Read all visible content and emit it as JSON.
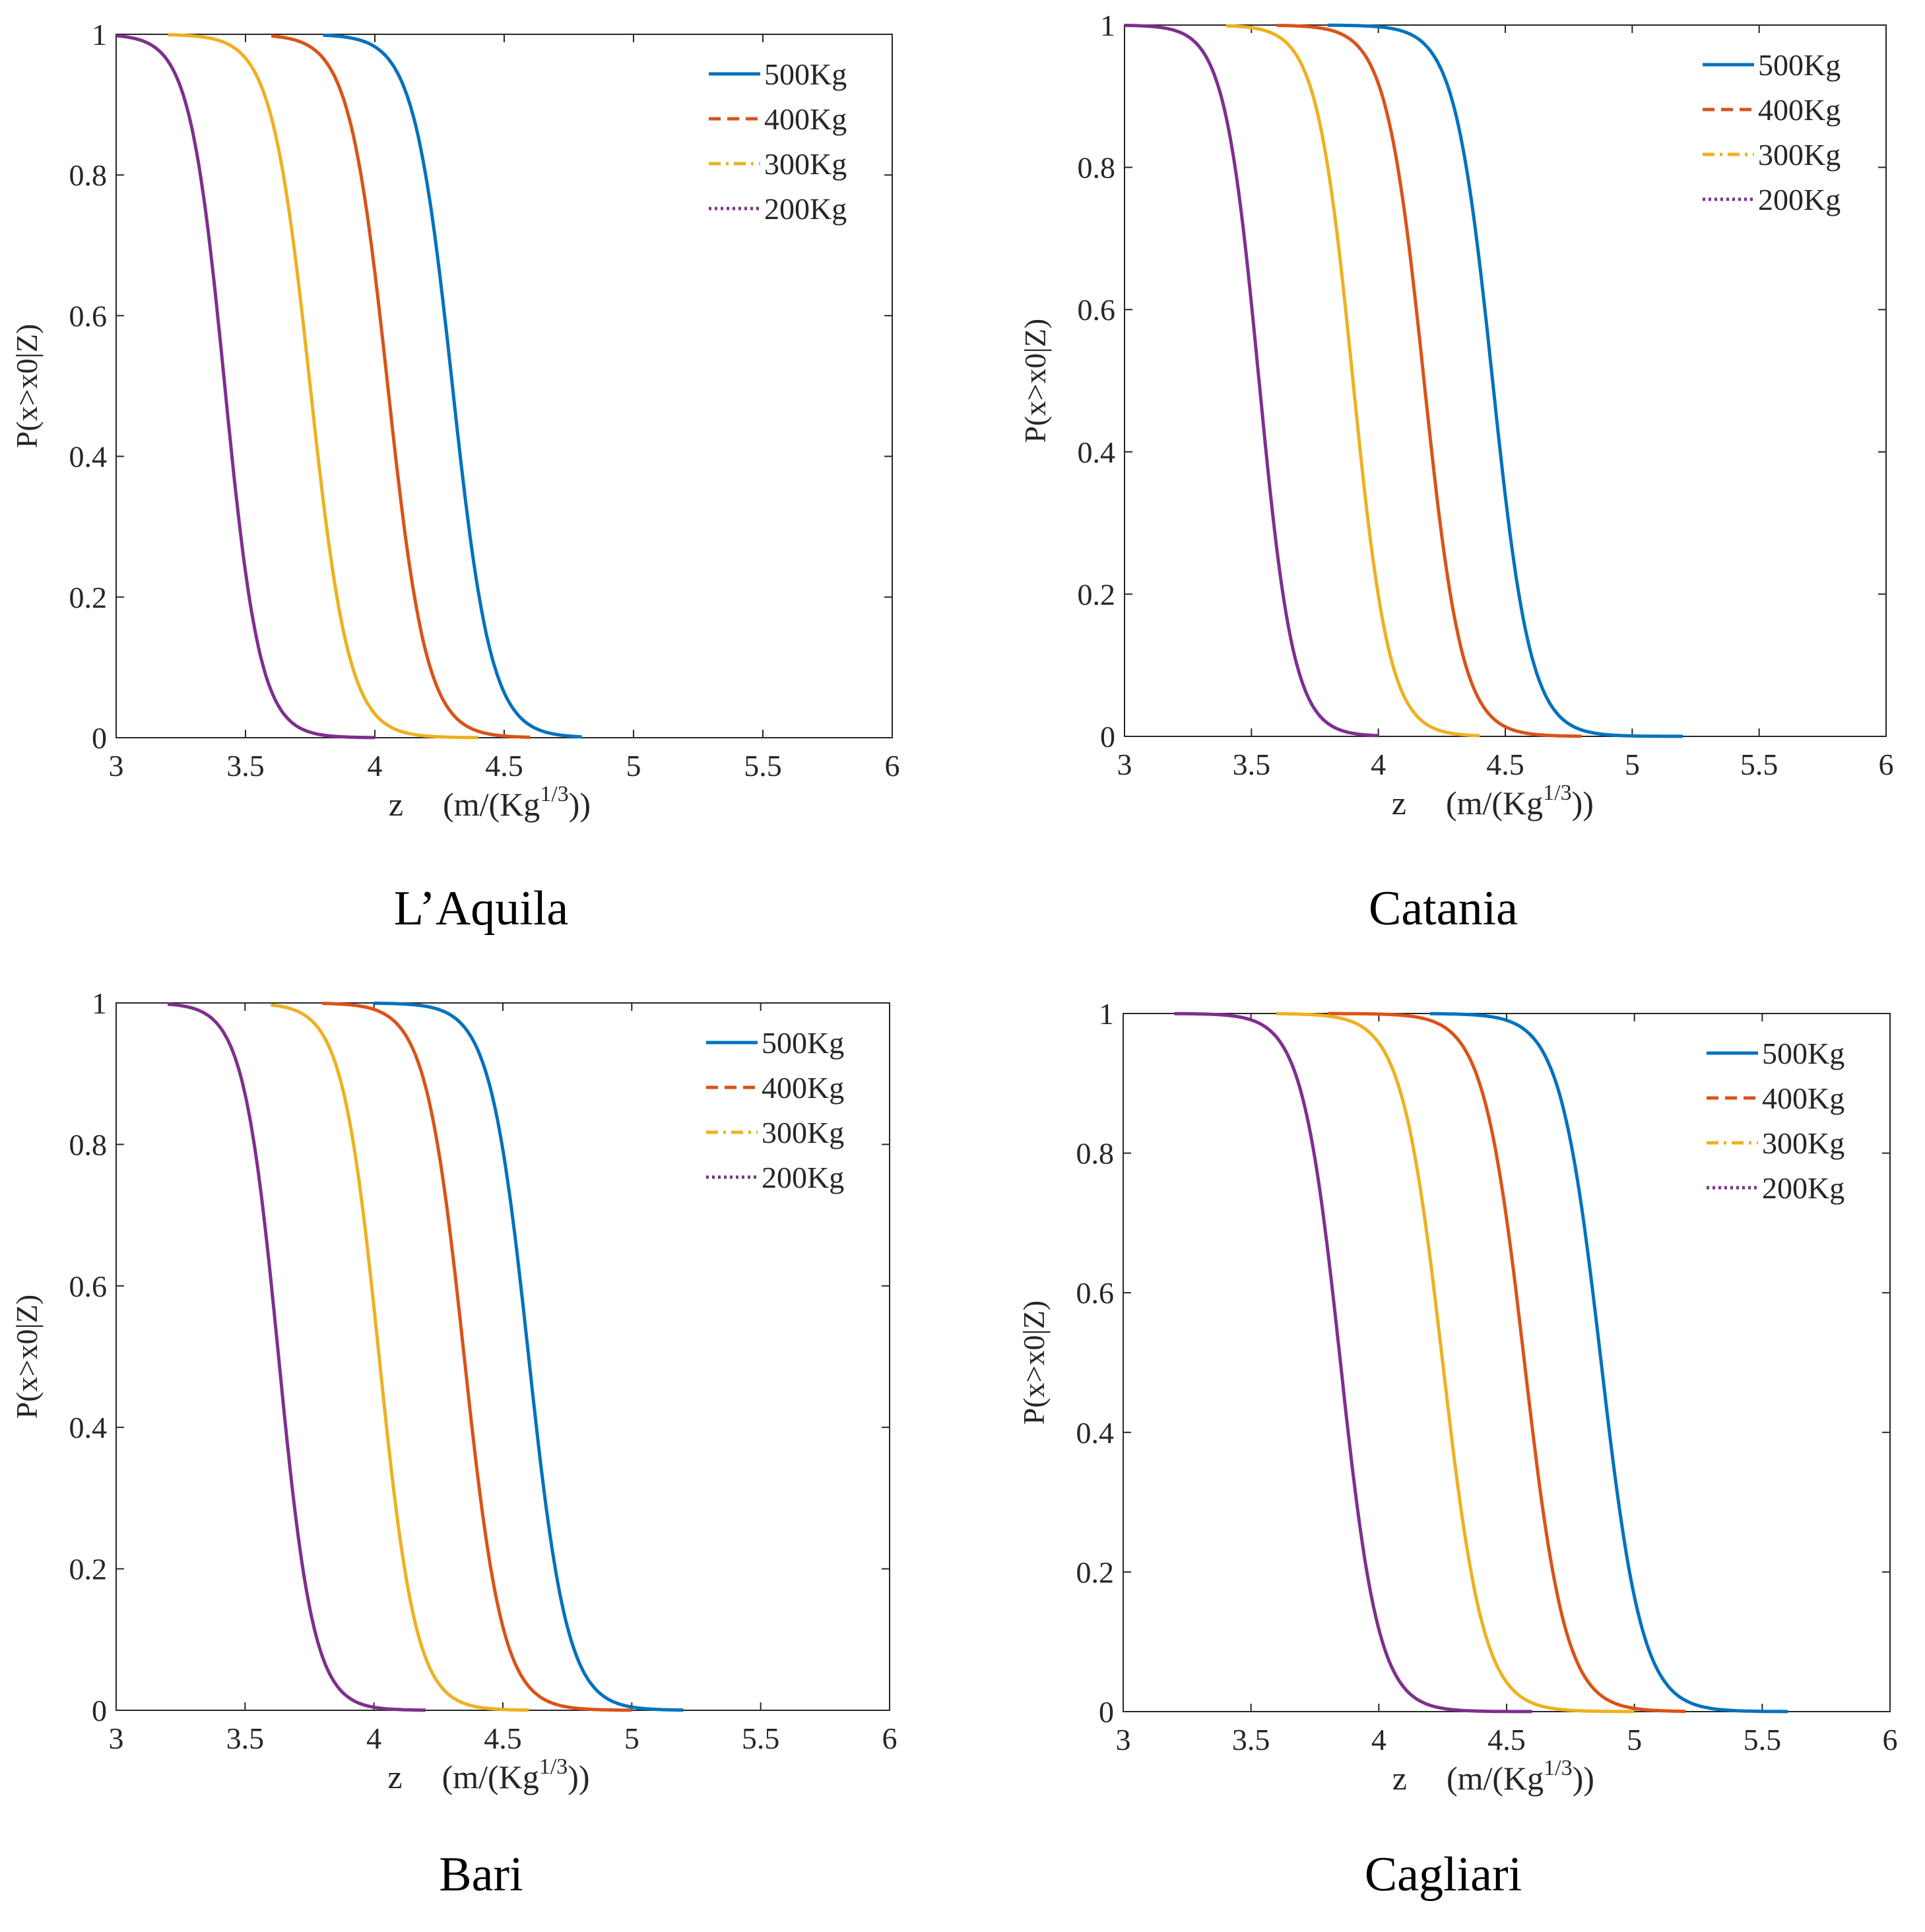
{
  "figure": {
    "series_labels": [
      "500Kg",
      "400Kg",
      "300Kg",
      "200Kg"
    ],
    "colors": {
      "500Kg": "#0072BD",
      "400Kg": "#D95319",
      "300Kg": "#EDB120",
      "200Kg": "#7E2F8E"
    }
  },
  "chart_data": [
    {
      "type": "line",
      "title": "L’Aquila",
      "xlabel": "z",
      "xlabel_unit": "(m/(Kg",
      "xlabel_exp": "1/3",
      "xlabel_close": "))",
      "ylabel": "P(x>x0|Z)",
      "xlim": [
        3,
        6
      ],
      "ylim": [
        0,
        1
      ],
      "xticks": [
        "3",
        "3.5",
        "4",
        "4.5",
        "5",
        "5.5",
        "6"
      ],
      "yticks": [
        "0",
        "0.2",
        "0.4",
        "0.6",
        "0.8",
        "1"
      ],
      "legend_position": "top-right",
      "series": [
        {
          "name": "500Kg",
          "style": "solid",
          "x_range": [
            3.8,
            4.8
          ],
          "median": 4.3,
          "steepness": 13.4
        },
        {
          "name": "400Kg",
          "style": "dashed",
          "x_range": [
            3.6,
            4.6
          ],
          "median": 4.05,
          "steepness": 13.4
        },
        {
          "name": "300Kg",
          "style": "dashdot",
          "x_range": [
            3.2,
            4.4
          ],
          "median": 3.75,
          "steepness": 13.4
        },
        {
          "name": "200Kg",
          "style": "dotted",
          "x_range": [
            3.0,
            4.0
          ],
          "median": 3.42,
          "steepness": 14.7
        }
      ]
    },
    {
      "type": "line",
      "title": "Catania",
      "xlabel": "z",
      "xlabel_unit": "(m/(Kg",
      "xlabel_exp": "1/3",
      "xlabel_close": "))",
      "ylabel": "P(x>x0|Z)",
      "xlim": [
        3,
        6
      ],
      "ylim": [
        0,
        1
      ],
      "xticks": [
        "3",
        "3.5",
        "4",
        "4.5",
        "5",
        "5.5",
        "6"
      ],
      "yticks": [
        "0",
        "0.2",
        "0.4",
        "0.6",
        "0.8",
        "1"
      ],
      "legend_position": "top-right",
      "series": [
        {
          "name": "500Kg",
          "style": "solid",
          "x_range": [
            3.8,
            5.2
          ],
          "median": 4.45,
          "steepness": 13.4
        },
        {
          "name": "400Kg",
          "style": "dashed",
          "x_range": [
            3.6,
            4.8
          ],
          "median": 4.18,
          "steepness": 13.4
        },
        {
          "name": "300Kg",
          "style": "dashdot",
          "x_range": [
            3.4,
            4.4
          ],
          "median": 3.9,
          "steepness": 14.0
        },
        {
          "name": "200Kg",
          "style": "dotted",
          "x_range": [
            3.0,
            4.0
          ],
          "median": 3.53,
          "steepness": 14.7
        }
      ]
    },
    {
      "type": "line",
      "title": "Bari",
      "xlabel": "z",
      "xlabel_unit": "(m/(Kg",
      "xlabel_exp": "1/3",
      "xlabel_close": "))",
      "ylabel": "P(x>x0|Z)",
      "xlim": [
        3,
        6
      ],
      "ylim": [
        0,
        1
      ],
      "xticks": [
        "3",
        "3.5",
        "4",
        "4.5",
        "5",
        "5.5",
        "6"
      ],
      "yticks": [
        "0",
        "0.2",
        "0.4",
        "0.6",
        "0.8",
        "1"
      ],
      "legend_position": "top-right",
      "series": [
        {
          "name": "500Kg",
          "style": "solid",
          "x_range": [
            4.0,
            5.2
          ],
          "median": 4.6,
          "steepness": 13.4
        },
        {
          "name": "400Kg",
          "style": "dashed",
          "x_range": [
            3.8,
            5.0
          ],
          "median": 4.35,
          "steepness": 13.4
        },
        {
          "name": "300Kg",
          "style": "dashdot",
          "x_range": [
            3.6,
            4.6
          ],
          "median": 4.02,
          "steepness": 14.0
        },
        {
          "name": "200Kg",
          "style": "dotted",
          "x_range": [
            3.2,
            4.2
          ],
          "median": 3.63,
          "steepness": 14.7
        }
      ]
    },
    {
      "type": "line",
      "title": "Cagliari",
      "xlabel": "z",
      "xlabel_unit": "(m/(Kg",
      "xlabel_exp": "1/3",
      "xlabel_close": "))",
      "ylabel": "P(x>x0|Z)",
      "xlim": [
        3,
        6
      ],
      "ylim": [
        0,
        1
      ],
      "xticks": [
        "3",
        "3.5",
        "4",
        "4.5",
        "5",
        "5.5",
        "6"
      ],
      "yticks": [
        "0",
        "0.2",
        "0.4",
        "0.6",
        "0.8",
        "1"
      ],
      "legend_position": "top-right",
      "series": [
        {
          "name": "500Kg",
          "style": "solid",
          "x_range": [
            4.2,
            5.6
          ],
          "median": 4.87,
          "steepness": 12.5
        },
        {
          "name": "400Kg",
          "style": "dashed",
          "x_range": [
            3.8,
            5.2
          ],
          "median": 4.57,
          "steepness": 12.5
        },
        {
          "name": "300Kg",
          "style": "dashdot",
          "x_range": [
            3.6,
            5.0
          ],
          "median": 4.25,
          "steepness": 12.5
        },
        {
          "name": "200Kg",
          "style": "dotted",
          "x_range": [
            3.2,
            4.6
          ],
          "median": 3.85,
          "steepness": 13.4
        }
      ]
    }
  ]
}
